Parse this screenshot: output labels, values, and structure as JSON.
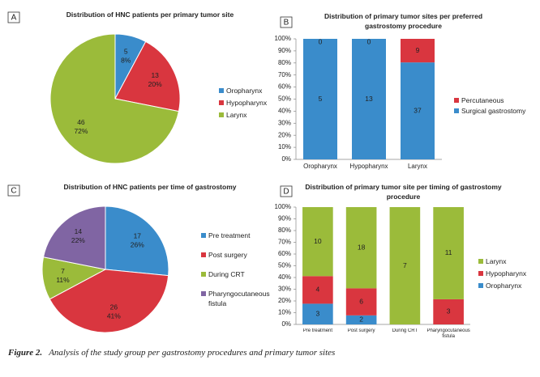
{
  "chart_data": [
    {
      "type": "pie",
      "panel": "A",
      "title": "Distribution of HNC patients per primary tumor site",
      "categories": [
        "Oropharynx",
        "Hypopharynx",
        "Larynx"
      ],
      "values": [
        5,
        13,
        46
      ],
      "percent_labels": [
        "8%",
        "20%",
        "72%"
      ],
      "colors": [
        "#3a8ccb",
        "#d9363f",
        "#9bbb3a"
      ],
      "legend": "right"
    },
    {
      "type": "bar",
      "stacked": "percent",
      "panel": "B",
      "title": "Distribution of primary tumor sites per preferred gastrostomy procedure",
      "categories": [
        "Oropharynx",
        "Hypopharynx",
        "Larynx"
      ],
      "series": [
        {
          "name": "Surgical gastrostomy",
          "color": "#3a8ccb",
          "values": [
            5,
            13,
            37
          ]
        },
        {
          "name": "Percutaneous",
          "color": "#d9363f",
          "values": [
            0,
            0,
            9
          ]
        }
      ],
      "ylim": [
        0,
        100
      ],
      "yticks": [
        {
          "value": 0,
          "label": "0%"
        },
        {
          "value": 10,
          "label": "10%"
        },
        {
          "value": 20,
          "label": "20%"
        },
        {
          "value": 30,
          "label": "30%"
        },
        {
          "value": 40,
          "label": "40%"
        },
        {
          "value": 50,
          "label": "50%"
        },
        {
          "value": 60,
          "label": "60%"
        },
        {
          "value": 70,
          "label": "70%"
        },
        {
          "value": 80,
          "label": "80%"
        },
        {
          "value": 90,
          "label": "90%"
        },
        {
          "value": 100,
          "label": "100%"
        }
      ],
      "legend": "right"
    },
    {
      "type": "pie",
      "panel": "C",
      "title": "Distribution of HNC patients per time of gastrostomy",
      "categories": [
        "Pre treatment",
        "Post surgery",
        "During CRT",
        "Pharyngocutaneous fistula"
      ],
      "values": [
        17,
        26,
        7,
        14
      ],
      "percent_labels": [
        "26%",
        "41%",
        "11%",
        "22%"
      ],
      "colors": [
        "#3a8ccb",
        "#d9363f",
        "#9bbb3a",
        "#8065a3"
      ],
      "legend": "right"
    },
    {
      "type": "bar",
      "stacked": "percent",
      "panel": "D",
      "title": "Distribution of primary tumor site per timing of gastrostomy procedure",
      "categories": [
        "Pre treatment",
        "Post surgery",
        "During CRT",
        "Pharyngocutaneous fistula"
      ],
      "series": [
        {
          "name": "Oropharynx",
          "color": "#3a8ccb",
          "values": [
            3,
            2,
            0,
            0
          ]
        },
        {
          "name": "Hypopharynx",
          "color": "#d9363f",
          "values": [
            4,
            6,
            0,
            3
          ]
        },
        {
          "name": "Larynx",
          "color": "#9bbb3a",
          "values": [
            10,
            18,
            7,
            11
          ]
        }
      ],
      "ylim": [
        0,
        100
      ],
      "yticks": [
        {
          "value": 0,
          "label": "0%"
        },
        {
          "value": 10,
          "label": "10%"
        },
        {
          "value": 20,
          "label": "20%"
        },
        {
          "value": 30,
          "label": "30%"
        },
        {
          "value": 40,
          "label": "40%"
        },
        {
          "value": 50,
          "label": "50%"
        },
        {
          "value": 60,
          "label": "60%"
        },
        {
          "value": 70,
          "label": "70%"
        },
        {
          "value": 80,
          "label": "80%"
        },
        {
          "value": 90,
          "label": "90%"
        },
        {
          "value": 100,
          "label": "100%"
        }
      ],
      "legend": "right"
    }
  ],
  "caption_label": "Figure 2.",
  "caption": "Analysis of the study group per gastrostomy procedures and primary tumor sites"
}
